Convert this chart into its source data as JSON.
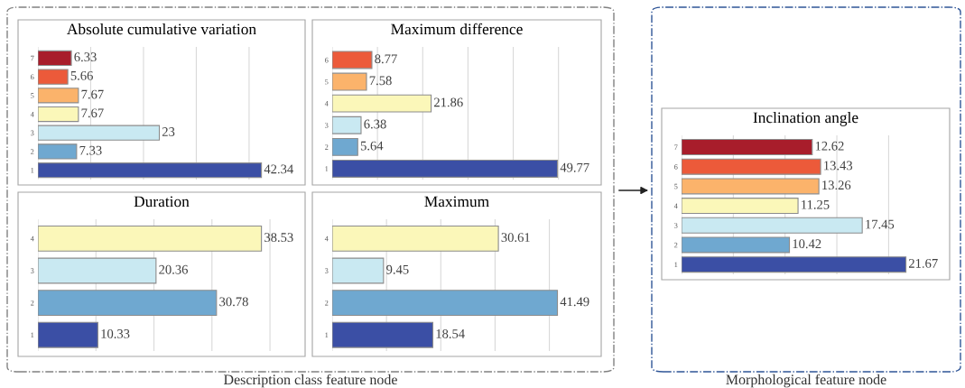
{
  "chart_data": [
    {
      "type": "bar",
      "orientation": "horizontal",
      "title": "Absolute cumulative variation",
      "categories": [
        "7",
        "6",
        "5",
        "4",
        "3",
        "2",
        "1"
      ],
      "values": [
        6.33,
        5.66,
        7.67,
        7.67,
        23,
        7.33,
        42.34
      ],
      "colors": [
        "#a81d2b",
        "#ec5a3a",
        "#fbb36b",
        "#fbf7b9",
        "#c9e9f2",
        "#6fa8d0",
        "#3b4fa5"
      ],
      "data_labels": true,
      "grid": "x",
      "tick_labels": "y",
      "annotations": [
        "Description class feature node"
      ]
    },
    {
      "type": "bar",
      "orientation": "horizontal",
      "title": "Maximum difference",
      "categories": [
        "6",
        "5",
        "4",
        "3",
        "2",
        "1"
      ],
      "values": [
        8.77,
        7.58,
        21.86,
        6.38,
        5.64,
        49.77
      ],
      "colors": [
        "#ec5a3a",
        "#fbb36b",
        "#fbf7b9",
        "#c9e9f2",
        "#6fa8d0",
        "#3b4fa5"
      ],
      "data_labels": true,
      "grid": "x",
      "tick_labels": "y"
    },
    {
      "type": "bar",
      "orientation": "horizontal",
      "title": "Duration",
      "categories": [
        "4",
        "3",
        "2",
        "1"
      ],
      "values": [
        38.53,
        20.36,
        30.78,
        10.33
      ],
      "colors": [
        "#fbf7b9",
        "#c9e9f2",
        "#6fa8d0",
        "#3b4fa5"
      ],
      "data_labels": true,
      "grid": "x",
      "tick_labels": "y"
    },
    {
      "type": "bar",
      "orientation": "horizontal",
      "title": "Maximum",
      "categories": [
        "4",
        "3",
        "2",
        "1"
      ],
      "values": [
        30.61,
        9.45,
        41.49,
        18.54
      ],
      "colors": [
        "#fbf7b9",
        "#c9e9f2",
        "#6fa8d0",
        "#3b4fa5"
      ],
      "data_labels": true,
      "grid": "x",
      "tick_labels": "y"
    },
    {
      "type": "bar",
      "orientation": "horizontal",
      "title": "Inclination angle",
      "categories": [
        "7",
        "6",
        "5",
        "4",
        "3",
        "2",
        "1"
      ],
      "values": [
        12.62,
        13.43,
        13.26,
        11.25,
        17.45,
        10.42,
        21.67
      ],
      "colors": [
        "#a81d2b",
        "#ec5a3a",
        "#fbb36b",
        "#fbf7b9",
        "#c9e9f2",
        "#6fa8d0",
        "#3b4fa5"
      ],
      "data_labels": true,
      "grid": "x",
      "tick_labels": "y",
      "annotations": [
        "Morphological feature node"
      ]
    }
  ]
}
